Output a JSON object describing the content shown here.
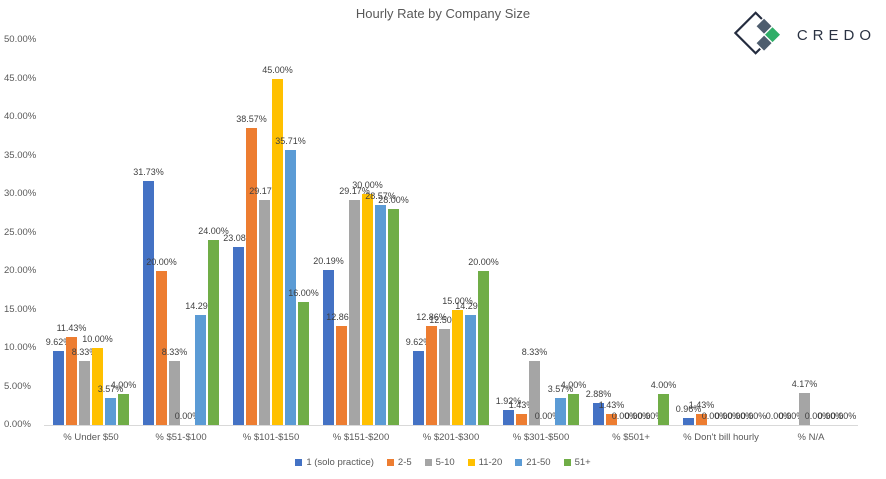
{
  "logo": {
    "text": "CREDO"
  },
  "colors": {
    "axis_line": "#D9D9D9",
    "tick_text": "#595959",
    "data_label_text": "#404040",
    "title_text": "#595959",
    "logo_text": "#2A3242",
    "logo_outline": "#242C3F",
    "logo_dark_diamond": "#4E5D6E",
    "logo_green_diamond": "#2FAE68"
  },
  "chart_data": {
    "type": "bar",
    "title": "Hourly Rate by Company Size",
    "categories": [
      "% Under $50",
      "% $51-$100",
      "% $101-$150",
      "% $151-$200",
      "% $201-$300",
      "% $301-$500",
      "% $501+",
      "% Don't bill hourly",
      "% N/A"
    ],
    "series": [
      {
        "name": "1 (solo practice)",
        "color": "#4472C4",
        "values": [
          9.62,
          31.73,
          23.08,
          20.19,
          9.62,
          1.92,
          2.88,
          0.96,
          0.0
        ]
      },
      {
        "name": "2-5",
        "color": "#ED7D31",
        "values": [
          11.43,
          20.0,
          38.57,
          12.86,
          12.86,
          1.43,
          1.43,
          1.43,
          0.0
        ]
      },
      {
        "name": "5-10",
        "color": "#A5A5A5",
        "values": [
          8.33,
          8.33,
          29.17,
          29.17,
          12.5,
          8.33,
          0.0,
          0.0,
          4.17
        ]
      },
      {
        "name": "11-20",
        "color": "#FFC000",
        "values": [
          10.0,
          0.0,
          45.0,
          30.0,
          15.0,
          0.0,
          0.0,
          0.0,
          0.0
        ]
      },
      {
        "name": "21-50",
        "color": "#5B9BD5",
        "values": [
          3.57,
          14.29,
          35.71,
          28.57,
          14.29,
          3.57,
          0.0,
          0.0,
          0.0
        ]
      },
      {
        "name": "51+",
        "color": "#70AD47",
        "values": [
          4.0,
          24.0,
          16.0,
          28.0,
          20.0,
          4.0,
          4.0,
          0.0,
          0.0
        ]
      }
    ],
    "ylim": [
      0,
      50
    ],
    "y_tick_step": 5,
    "y_tick_labels": [
      "0.00%",
      "5.00%",
      "10.00%",
      "15.00%",
      "20.00%",
      "25.00%",
      "30.00%",
      "35.00%",
      "40.00%",
      "45.00%",
      "50.00%"
    ],
    "grid": false,
    "data_labels": true,
    "label_format": "0.00%",
    "legend_position": "bottom"
  }
}
